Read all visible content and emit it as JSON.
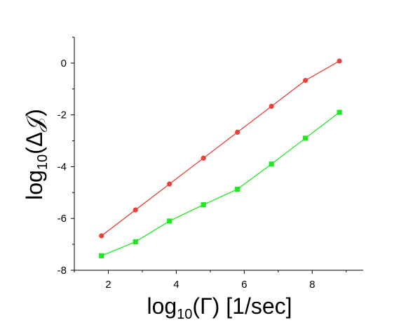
{
  "chart_data": {
    "type": "line",
    "xlabel": {
      "main": "log",
      "sub": "10",
      "rest": "(Γ) [1/sec]"
    },
    "ylabel": {
      "main": "log",
      "sub": "10",
      "rest": "(Δ𝒥)"
    },
    "xlim": [
      1.0,
      9.5
    ],
    "ylim": [
      -8,
      1
    ],
    "x_ticks": [
      2,
      4,
      6,
      8
    ],
    "x_tick_labels": [
      "2",
      "4",
      "6",
      "8"
    ],
    "y_ticks": [
      -8,
      -6,
      -4,
      -2,
      0
    ],
    "y_tick_labels": [
      "-8",
      "-6",
      "-4",
      "-2",
      "0"
    ],
    "grid": false,
    "series": [
      {
        "color": "#e8403c",
        "marker": "circle",
        "x": [
          1.8,
          2.8,
          3.8,
          4.8,
          5.8,
          6.8,
          7.8,
          8.8
        ],
        "y": [
          -6.67,
          -5.67,
          -4.67,
          -3.67,
          -2.67,
          -1.67,
          -0.67,
          0.08
        ]
      },
      {
        "color": "#1ee81e",
        "marker": "square",
        "x": [
          1.8,
          2.8,
          3.8,
          4.8,
          5.8,
          6.8,
          7.8,
          8.8
        ],
        "y": [
          -7.44,
          -6.9,
          -6.1,
          -5.47,
          -4.87,
          -3.9,
          -2.9,
          -1.9
        ]
      }
    ]
  }
}
